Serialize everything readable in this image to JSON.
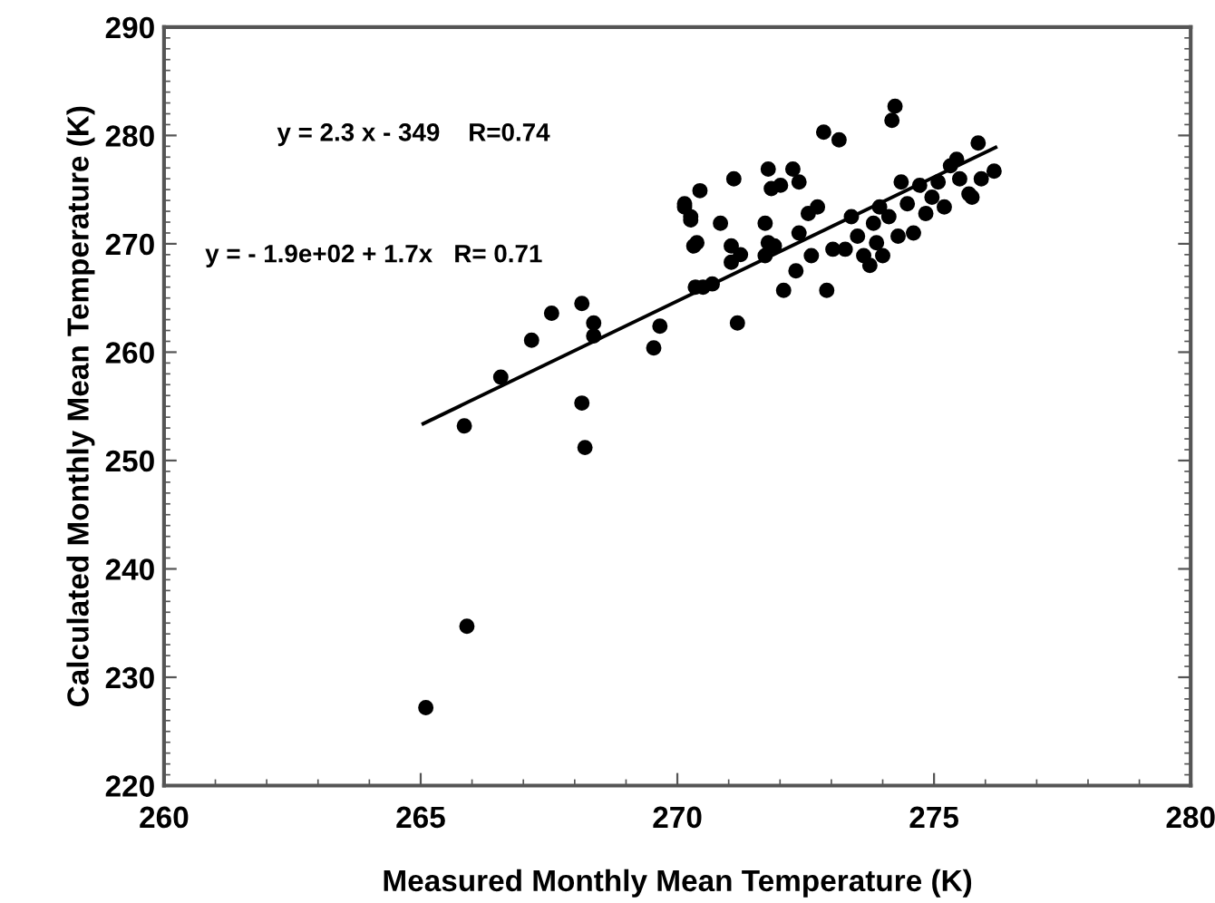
{
  "chart_data": {
    "type": "scatter",
    "xlabel": "Measured Monthly Mean Temperature (K)",
    "ylabel": "Calculated Monthly Mean Temperature (K)",
    "xlim": [
      260,
      280
    ],
    "xticks": [
      260,
      265,
      270,
      275,
      280
    ],
    "ylim": [
      220,
      290
    ],
    "yticks": [
      220,
      230,
      240,
      250,
      260,
      270,
      280,
      290
    ],
    "grid": false,
    "legend": false,
    "annotations": [
      "y = 2.3 x - 349    R=0.74",
      "y = - 1.9e+02 + 1.7x   R= 0.71"
    ],
    "series": [
      {
        "color": "#000000",
        "marker": "circle",
        "x": [
          265.1,
          265.85,
          265.9,
          266.56,
          267.16,
          267.55,
          268.14,
          268.14,
          268.2,
          268.37,
          268.37,
          269.54,
          269.66,
          270.14,
          270.26,
          270.32,
          270.35,
          270.14,
          270.26,
          270.44,
          270.38,
          270.5,
          270.68,
          270.84,
          271.1,
          271.05,
          271.05,
          271.23,
          271.17,
          271.77,
          271.83,
          271.71,
          271.77,
          271.71,
          272.01,
          272.25,
          272.37,
          271.89,
          272.07,
          272.31,
          272.37,
          272.55,
          272.73,
          272.61,
          272.85,
          273.15,
          272.91,
          273.03,
          273.27,
          273.39,
          273.51,
          273.63,
          273.75,
          273.88,
          273.94,
          274.12,
          273.82,
          274.18,
          274.24,
          274.36,
          274.3,
          274.48,
          274.6,
          274.72,
          274.84,
          274.96,
          275.08,
          275.2,
          275.32,
          275.44,
          275.5,
          275.68,
          275.86,
          275.92,
          276.17,
          275.74,
          274.0
        ],
        "values": [
          227.2,
          253.2,
          234.7,
          257.7,
          261.1,
          263.6,
          264.5,
          255.3,
          251.2,
          262.7,
          261.5,
          260.4,
          262.4,
          273.4,
          272.5,
          269.8,
          266.0,
          273.7,
          272.2,
          274.9,
          270.1,
          266.0,
          266.3,
          271.9,
          276.0,
          269.8,
          268.3,
          269.0,
          262.7,
          276.9,
          275.1,
          271.9,
          270.1,
          268.9,
          275.4,
          276.9,
          275.7,
          269.8,
          265.7,
          267.5,
          271.0,
          272.8,
          273.4,
          268.9,
          280.3,
          279.6,
          265.7,
          269.5,
          269.5,
          272.5,
          270.7,
          268.9,
          268.0,
          270.1,
          273.4,
          272.5,
          271.9,
          281.4,
          282.7,
          275.7,
          270.7,
          273.7,
          271.0,
          275.4,
          272.8,
          274.3,
          275.7,
          273.4,
          277.2,
          277.8,
          276.0,
          274.6,
          279.3,
          276.0,
          276.7,
          274.3,
          268.9
        ]
      },
      {
        "type": "line",
        "color": "#000000",
        "marker": "none",
        "line_style": "solid",
        "x": [
          265.05,
          276.2
        ],
        "values": [
          253.4,
          278.9
        ]
      }
    ]
  }
}
